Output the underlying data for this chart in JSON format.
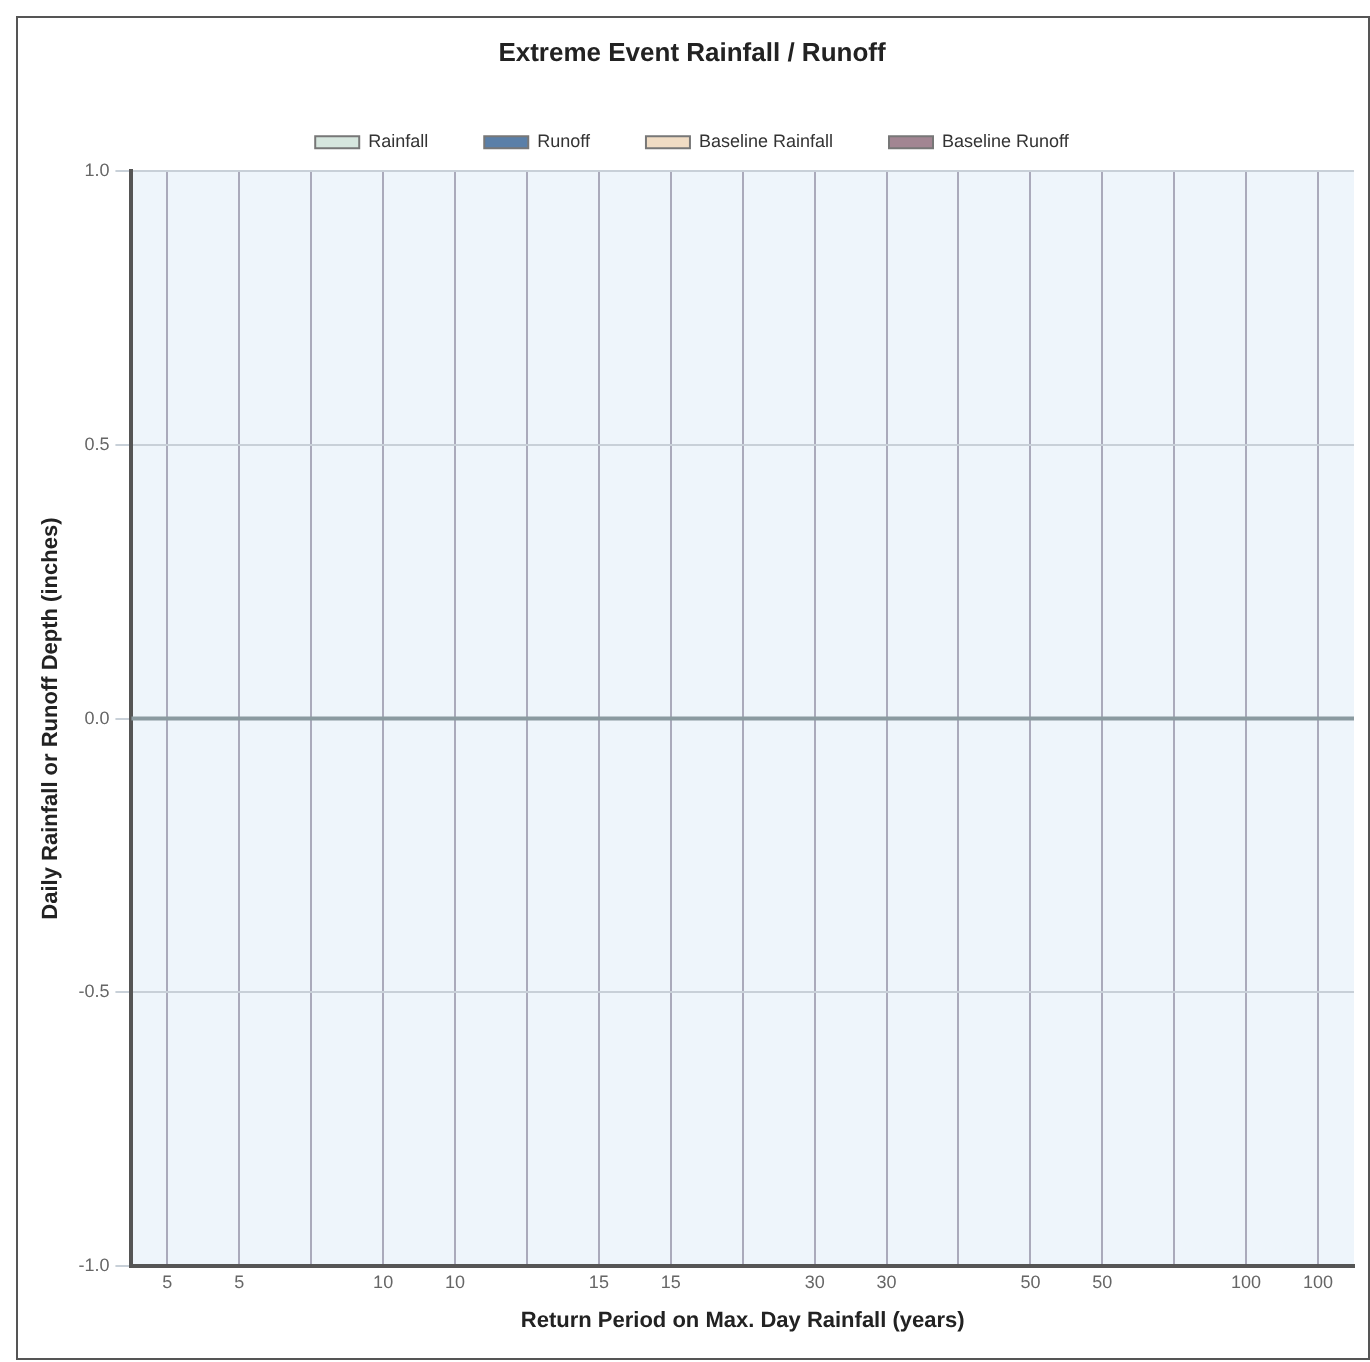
{
  "chart_data": {
    "type": "bar",
    "title": "Extreme Event Rainfall / Runoff",
    "xlabel": "Return Period on Max. Day Rainfall (years)",
    "ylabel": "Daily Rainfall or Runoff Depth (inches)",
    "categories": [
      "5",
      "5",
      null,
      "10",
      "10",
      null,
      "15",
      "15",
      null,
      "30",
      "30",
      null,
      "50",
      "50",
      null,
      "100",
      "100"
    ],
    "series": [
      {
        "name": "Rainfall",
        "color": "#d6e6de",
        "values": [
          0,
          0,
          0,
          0,
          0,
          0,
          0,
          0,
          0,
          0,
          0,
          0,
          0,
          0,
          0,
          0,
          0
        ]
      },
      {
        "name": "Runoff",
        "color": "#5a7fa8",
        "values": [
          0,
          0,
          0,
          0,
          0,
          0,
          0,
          0,
          0,
          0,
          0,
          0,
          0,
          0,
          0,
          0,
          0
        ]
      },
      {
        "name": "Baseline Rainfall",
        "color": "#f0dcc4",
        "values": [
          0,
          0,
          0,
          0,
          0,
          0,
          0,
          0,
          0,
          0,
          0,
          0,
          0,
          0,
          0,
          0,
          0
        ]
      },
      {
        "name": "Baseline Runoff",
        "color": "#a28592",
        "values": [
          0,
          0,
          0,
          0,
          0,
          0,
          0,
          0,
          0,
          0,
          0,
          0,
          0,
          0,
          0,
          0,
          0
        ]
      }
    ],
    "ylim": [
      -1,
      1
    ],
    "yticks": [
      {
        "value": -1,
        "label": "-1.0"
      },
      {
        "value": -0.5,
        "label": "-0.5"
      },
      {
        "value": 0,
        "label": "0.0"
      },
      {
        "value": 0.5,
        "label": "0.5"
      },
      {
        "value": 1,
        "label": "1.0"
      }
    ],
    "grid": true,
    "legend": "top"
  }
}
